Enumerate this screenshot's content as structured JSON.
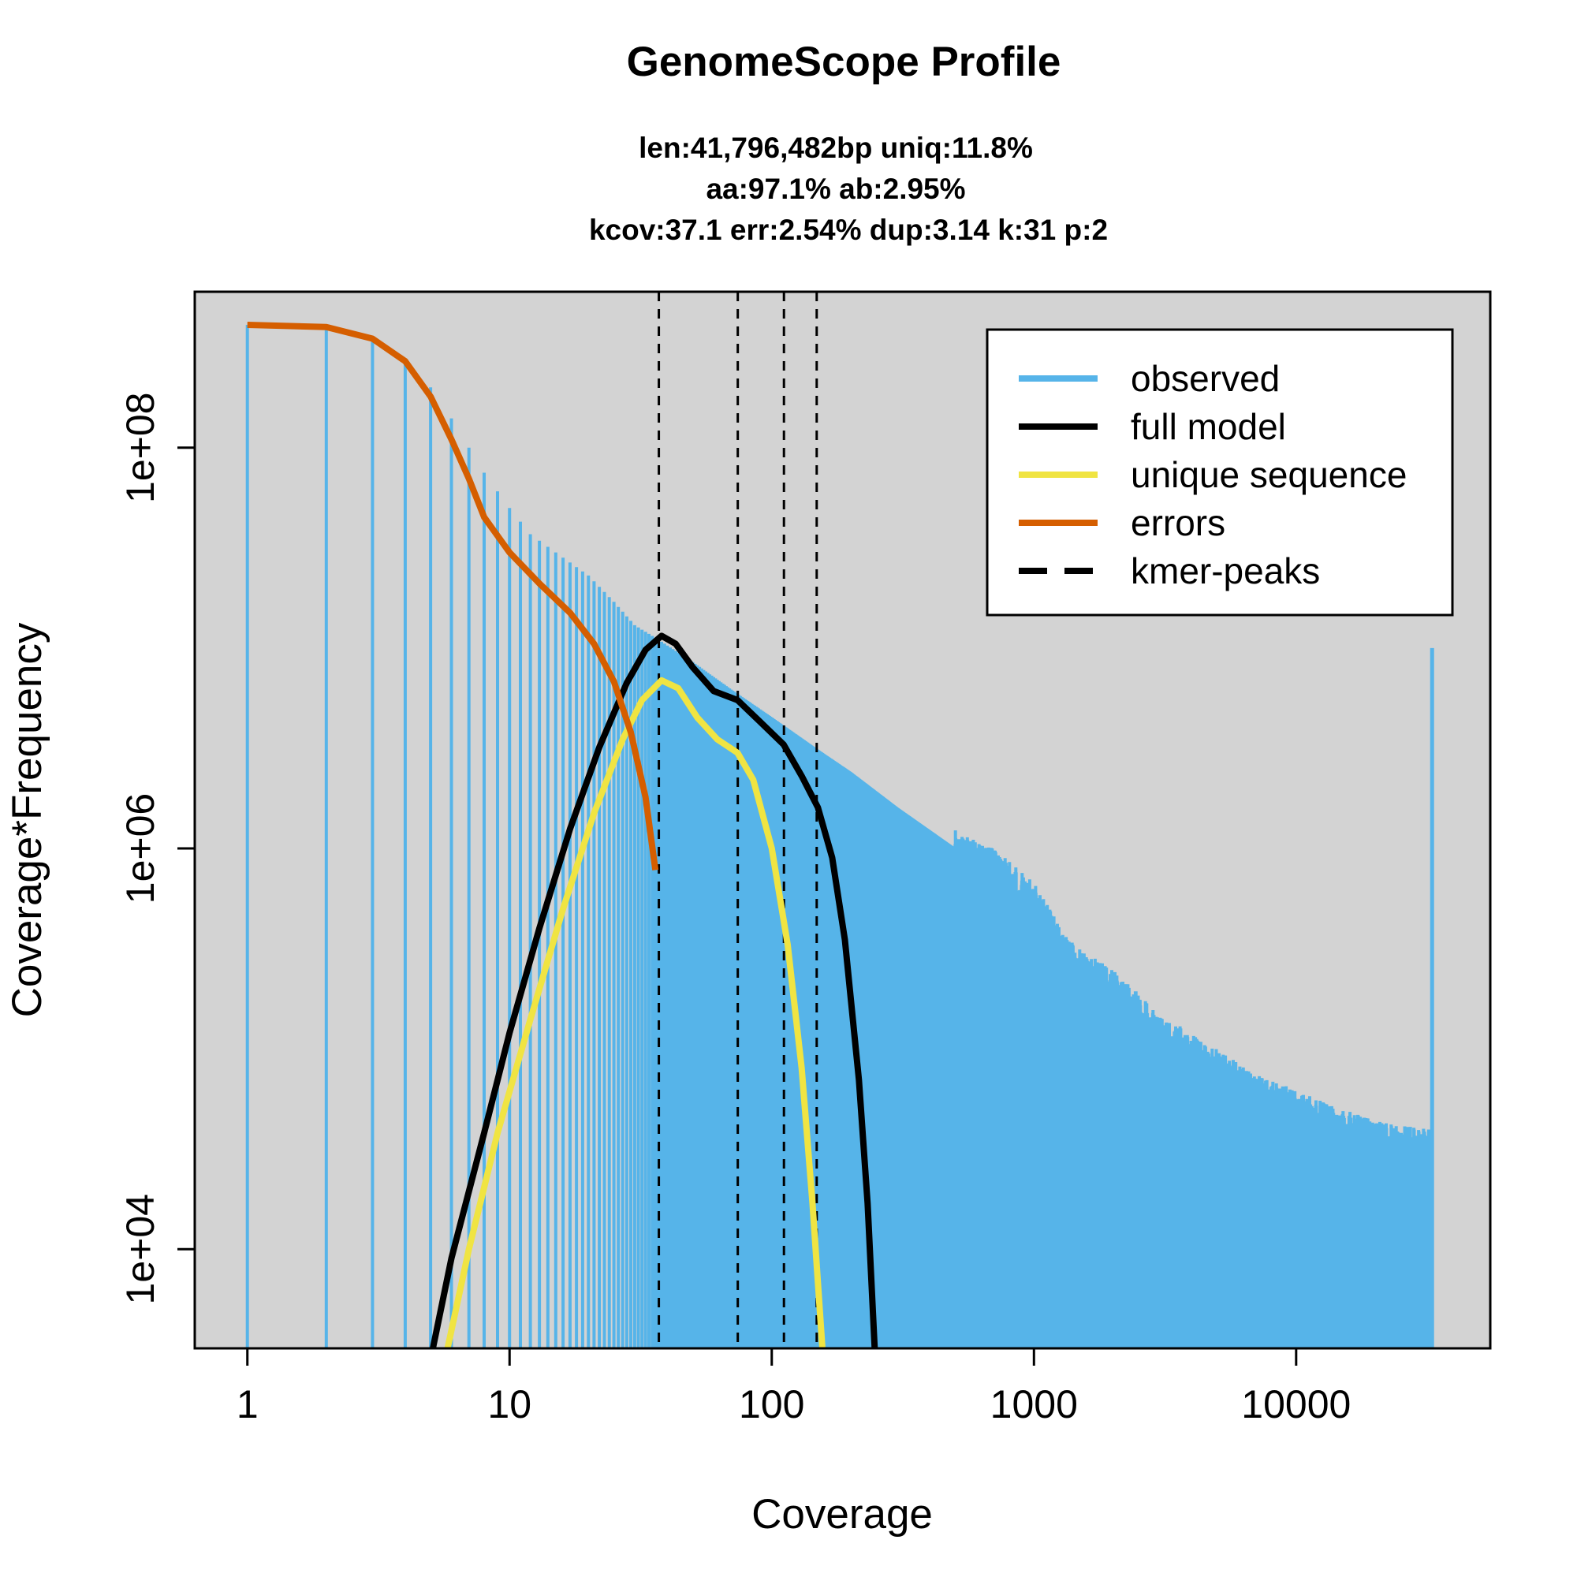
{
  "chart_data": {
    "type": "line",
    "title": "GenomeScope Profile",
    "subtitle_lines": [
      "len:41,796,482bp uniq:11.8%",
      "aa:97.1% ab:2.95%",
      "kcov:37.1 err:2.54%  dup:3.14  k:31 p:2"
    ],
    "xlabel": "Coverage",
    "ylabel": "Coverage*Frequency",
    "x_scale": "log",
    "y_scale": "log",
    "xlim": [
      0.63,
      55000
    ],
    "ylim": [
      3200,
      600000000
    ],
    "x_ticks": [
      {
        "value": 1,
        "label": "1"
      },
      {
        "value": 10,
        "label": "10"
      },
      {
        "value": 100,
        "label": "100"
      },
      {
        "value": 1000,
        "label": "1000"
      },
      {
        "value": 10000,
        "label": "10000"
      }
    ],
    "y_ticks": [
      {
        "value": 10000,
        "label": "1e+04"
      },
      {
        "value": 1000000,
        "label": "1e+06"
      },
      {
        "value": 100000000,
        "label": "1e+08"
      }
    ],
    "background": "#d3d3d3",
    "kmer_peaks": [
      37.1,
      74.2,
      111.3,
      148.4
    ],
    "legend": {
      "position": "top-right",
      "entries": [
        {
          "label": "observed",
          "color": "#56b4e9",
          "style": "solid"
        },
        {
          "label": "full model",
          "color": "#000000",
          "style": "solid"
        },
        {
          "label": "unique sequence",
          "color": "#f0e442",
          "style": "solid"
        },
        {
          "label": "errors",
          "color": "#d55e00",
          "style": "solid"
        },
        {
          "label": "kmer-peaks",
          "color": "#000000",
          "style": "dashed"
        }
      ]
    },
    "series": [
      {
        "name": "observed",
        "color": "#56b4e9",
        "style": "histogram",
        "points": [
          [
            1,
            410000000
          ],
          [
            2,
            400000000
          ],
          [
            3,
            350000000
          ],
          [
            4,
            270000000
          ],
          [
            5,
            200000000
          ],
          [
            6,
            140000000
          ],
          [
            7,
            100000000
          ],
          [
            8,
            75000000
          ],
          [
            10,
            50000000
          ],
          [
            12,
            37000000
          ],
          [
            15,
            30000000
          ],
          [
            20,
            23000000
          ],
          [
            25,
            17000000
          ],
          [
            30,
            13000000
          ],
          [
            37,
            11000000
          ],
          [
            50,
            8500000
          ],
          [
            70,
            6200000
          ],
          [
            100,
            4500000
          ],
          [
            150,
            3100000
          ],
          [
            200,
            2400000
          ],
          [
            300,
            1600000
          ],
          [
            500,
            1000000
          ],
          [
            700,
            800000
          ],
          [
            1000,
            550000
          ],
          [
            1300,
            300000
          ],
          [
            1500,
            250000
          ],
          [
            2000,
            200000
          ],
          [
            3000,
            120000
          ],
          [
            5000,
            80000
          ],
          [
            7000,
            60000
          ],
          [
            10000,
            50000
          ],
          [
            15000,
            40000
          ],
          [
            20000,
            35000
          ],
          [
            30000,
            32000
          ],
          [
            33000,
            32000
          ]
        ]
      },
      {
        "name": "full model",
        "color": "#000000",
        "style": "solid",
        "points": [
          [
            5.1,
            3200
          ],
          [
            6,
            9000
          ],
          [
            8,
            38000
          ],
          [
            10,
            120000
          ],
          [
            13,
            400000
          ],
          [
            17,
            1250000
          ],
          [
            22,
            3200000
          ],
          [
            28,
            6700000
          ],
          [
            33,
            9800000
          ],
          [
            38,
            11500000
          ],
          [
            43,
            10500000
          ],
          [
            50,
            8000000
          ],
          [
            60,
            6100000
          ],
          [
            74,
            5500000
          ],
          [
            90,
            4300000
          ],
          [
            111,
            3300000
          ],
          [
            130,
            2300000
          ],
          [
            150,
            1600000
          ],
          [
            170,
            900000
          ],
          [
            190,
            350000
          ],
          [
            215,
            70000
          ],
          [
            232,
            17000
          ],
          [
            247,
            3200
          ]
        ]
      },
      {
        "name": "unique sequence",
        "color": "#f0e442",
        "style": "solid",
        "points": [
          [
            5.8,
            3200
          ],
          [
            7,
            10000
          ],
          [
            9,
            38000
          ],
          [
            12,
            140000
          ],
          [
            16,
            500000
          ],
          [
            21,
            1500000
          ],
          [
            27,
            3500000
          ],
          [
            32,
            5500000
          ],
          [
            38,
            6900000
          ],
          [
            44,
            6300000
          ],
          [
            52,
            4500000
          ],
          [
            62,
            3500000
          ],
          [
            74,
            3000000
          ],
          [
            85,
            2200000
          ],
          [
            100,
            1000000
          ],
          [
            115,
            330000
          ],
          [
            130,
            80000
          ],
          [
            143,
            17000
          ],
          [
            156,
            3200
          ]
        ]
      },
      {
        "name": "errors",
        "color": "#d55e00",
        "style": "solid",
        "points": [
          [
            1,
            410000000
          ],
          [
            2,
            400000000
          ],
          [
            3,
            350000000
          ],
          [
            4,
            270000000
          ],
          [
            5,
            180000000
          ],
          [
            6,
            110000000
          ],
          [
            7,
            70000000
          ],
          [
            8,
            45000000
          ],
          [
            10,
            30000000
          ],
          [
            13,
            21000000
          ],
          [
            17,
            15000000
          ],
          [
            21,
            10500000
          ],
          [
            25,
            6800000
          ],
          [
            29,
            3800000
          ],
          [
            33,
            1800000
          ],
          [
            36,
            780000
          ]
        ]
      }
    ]
  }
}
